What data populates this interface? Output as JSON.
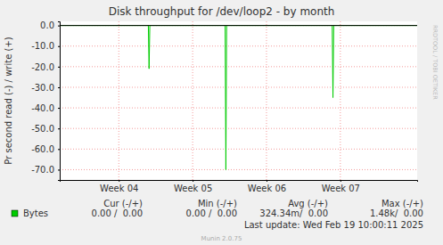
{
  "chart_data": {
    "type": "line",
    "title": "Disk throughput for /dev/loop2 - by month",
    "y_label": "Pr second read (-) / write (+)",
    "x": [
      3.2,
      4.4,
      4.41,
      4.42,
      5.44,
      5.45,
      5.46,
      6.89,
      6.9,
      6.91,
      8.04
    ],
    "series": [
      {
        "name": "Bytes",
        "color": "#00cc00",
        "values": [
          0,
          0,
          -21,
          0,
          0,
          -70,
          0,
          0,
          -35,
          0,
          0
        ]
      }
    ],
    "xlim": [
      3.2,
      8.04
    ],
    "xticks": [
      {
        "value": 4,
        "label": "Week 04"
      },
      {
        "value": 5,
        "label": "Week 05"
      },
      {
        "value": 6,
        "label": "Week 06"
      },
      {
        "value": 7,
        "label": "Week 07"
      }
    ],
    "ylim": [
      -75,
      2
    ],
    "yticks": [
      {
        "value": 0,
        "label": "0.0"
      },
      {
        "value": -10,
        "label": "-10.0"
      },
      {
        "value": -20,
        "label": "-20.0"
      },
      {
        "value": -30,
        "label": "-30.0"
      },
      {
        "value": -40,
        "label": "-40.0"
      },
      {
        "value": -50,
        "label": "-50.0"
      },
      {
        "value": -60,
        "label": "-60.0"
      },
      {
        "value": -70,
        "label": "-70.0"
      }
    ],
    "grid": true,
    "stats": {
      "headers": [
        "Cur (-/+)",
        "Min (-/+)",
        "Avg (-/+)",
        "Max (-/+)"
      ],
      "rows": [
        [
          "0.00 /  0.00",
          "0.00 /  0.00",
          "324.34m/  0.00",
          "1.48k/  0.00"
        ]
      ]
    },
    "last_update": "Last update: Wed Feb 19 10:00:11 2025",
    "footer": "Munin 2.0.75",
    "watermark": "RRDTOOL / TOBI OETIKER"
  }
}
